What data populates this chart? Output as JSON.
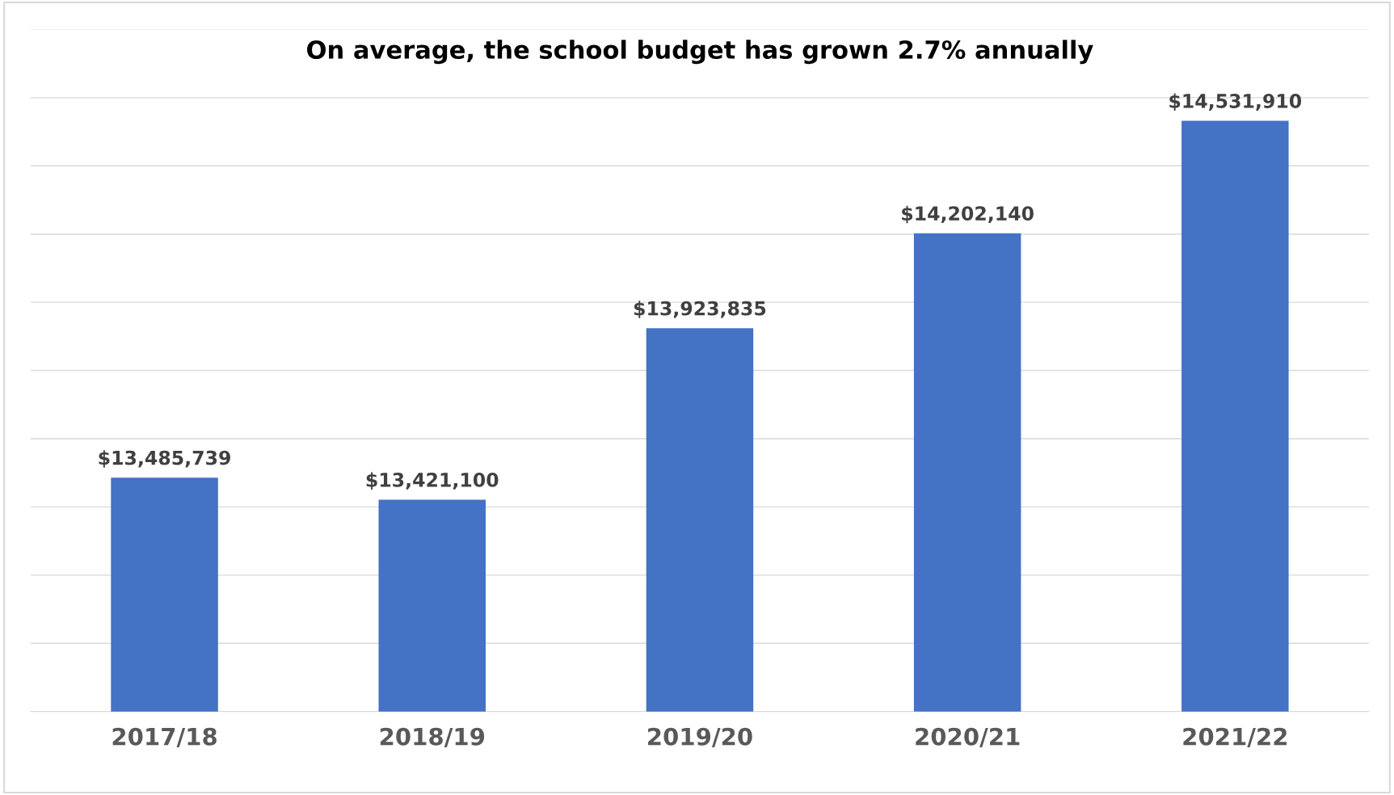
{
  "chart_data": {
    "type": "bar",
    "title": "On average, the school budget has grown 2.7% annually",
    "categories": [
      "2017/18",
      "2018/19",
      "2019/20",
      "2020/21",
      "2021/22"
    ],
    "values": [
      13485739,
      13421100,
      13923835,
      14202140,
      14531910
    ],
    "value_labels": [
      "$13,485,739",
      "$13,421,100",
      "$13,923,835",
      "$14,202,140",
      "$14,531,910"
    ],
    "color": "#4472c4",
    "ylim": [
      12800000,
      14800000
    ],
    "yticks": [
      {
        "value": 12800000,
        "label": null
      },
      {
        "value": 13000000,
        "label": null
      },
      {
        "value": 13200000,
        "label": null
      },
      {
        "value": 13400000,
        "label": null
      },
      {
        "value": 13600000,
        "label": null
      },
      {
        "value": 13800000,
        "label": null
      },
      {
        "value": 14000000,
        "label": null
      },
      {
        "value": 14200000,
        "label": null
      },
      {
        "value": 14400000,
        "label": null
      },
      {
        "value": 14600000,
        "label": null
      },
      {
        "value": 14800000,
        "label": null
      }
    ],
    "tick_labels": "x",
    "grid": "y",
    "legend": false
  }
}
